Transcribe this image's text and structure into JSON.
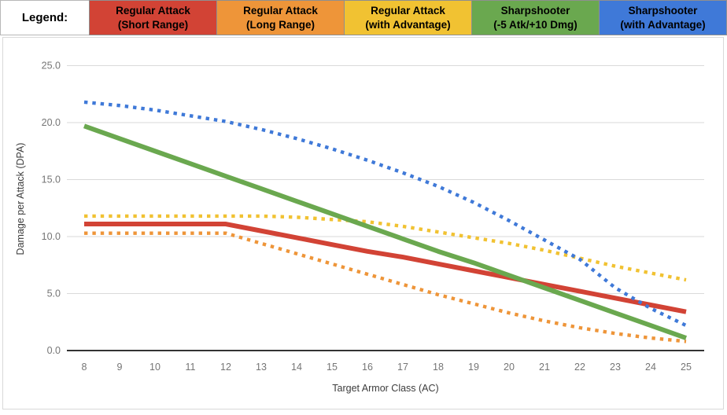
{
  "legend": {
    "label": "Legend:",
    "items": [
      {
        "line1": "Regular Attack",
        "line2": "(Short Range)",
        "color": "#d24335"
      },
      {
        "line1": "Regular Attack",
        "line2": "(Long Range)",
        "color": "#ee9539"
      },
      {
        "line1": "Regular Attack",
        "line2": "(with Advantage)",
        "color": "#f1c232"
      },
      {
        "line1": "Sharpshooter",
        "line2": "(-5 Atk/+10 Dmg)",
        "color": "#6aa84f"
      },
      {
        "line1": "Sharpshooter",
        "line2": "(with Advantage)",
        "color": "#3f79d8"
      }
    ]
  },
  "chart_data": {
    "type": "line",
    "title": "",
    "xlabel": "Target Armor Class (AC)",
    "ylabel": "Damage per Attack (DPA)",
    "x": [
      8,
      9,
      10,
      11,
      12,
      13,
      14,
      15,
      16,
      17,
      18,
      19,
      20,
      21,
      22,
      23,
      24,
      25
    ],
    "xlim": [
      8,
      25
    ],
    "ylim": [
      0,
      25
    ],
    "yticks": [
      0,
      5,
      10,
      15,
      20,
      25
    ],
    "ytick_labels": [
      "0.0",
      "5.0",
      "10.0",
      "15.0",
      "20.0",
      "25.0"
    ],
    "grid": true,
    "legend_position": "top",
    "axis_text_color": "#757575",
    "axis_title_color": "#3c3c3c",
    "gridline_color": "#dadada",
    "baseline_color": "#333333",
    "series": [
      {
        "name": "Regular Attack (Short Range)",
        "color": "#d24335",
        "style": "solid",
        "values": [
          11.1,
          11.1,
          11.1,
          11.1,
          11.1,
          10.5,
          9.9,
          9.3,
          8.7,
          8.2,
          7.6,
          7.0,
          6.4,
          5.8,
          5.2,
          4.6,
          4.0,
          3.4
        ]
      },
      {
        "name": "Regular Attack (Long Range)",
        "color": "#ee9539",
        "style": "dotted",
        "values": [
          10.3,
          10.3,
          10.3,
          10.3,
          10.3,
          9.4,
          8.5,
          7.6,
          6.7,
          5.8,
          4.9,
          4.1,
          3.3,
          2.6,
          2.0,
          1.5,
          1.1,
          0.8
        ]
      },
      {
        "name": "Regular Attack (with Advantage)",
        "color": "#f1c232",
        "style": "dotted",
        "values": [
          11.8,
          11.8,
          11.8,
          11.8,
          11.8,
          11.8,
          11.7,
          11.5,
          11.3,
          10.9,
          10.4,
          9.9,
          9.4,
          8.8,
          8.1,
          7.4,
          6.8,
          6.2
        ]
      },
      {
        "name": "Sharpshooter (-5 Atk/+10 Dmg)",
        "color": "#6aa84f",
        "style": "solid",
        "values": [
          19.7,
          18.6,
          17.5,
          16.4,
          15.3,
          14.2,
          13.1,
          12.0,
          10.9,
          9.8,
          8.7,
          7.7,
          6.6,
          5.5,
          4.4,
          3.3,
          2.2,
          1.1
        ]
      },
      {
        "name": "Sharpshooter (with Advantage)",
        "color": "#3f79d8",
        "style": "dotted",
        "values": [
          21.8,
          21.5,
          21.1,
          20.6,
          20.1,
          19.4,
          18.6,
          17.7,
          16.7,
          15.6,
          14.4,
          13.0,
          11.4,
          9.7,
          8.0,
          5.5,
          3.7,
          2.2
        ]
      }
    ]
  }
}
